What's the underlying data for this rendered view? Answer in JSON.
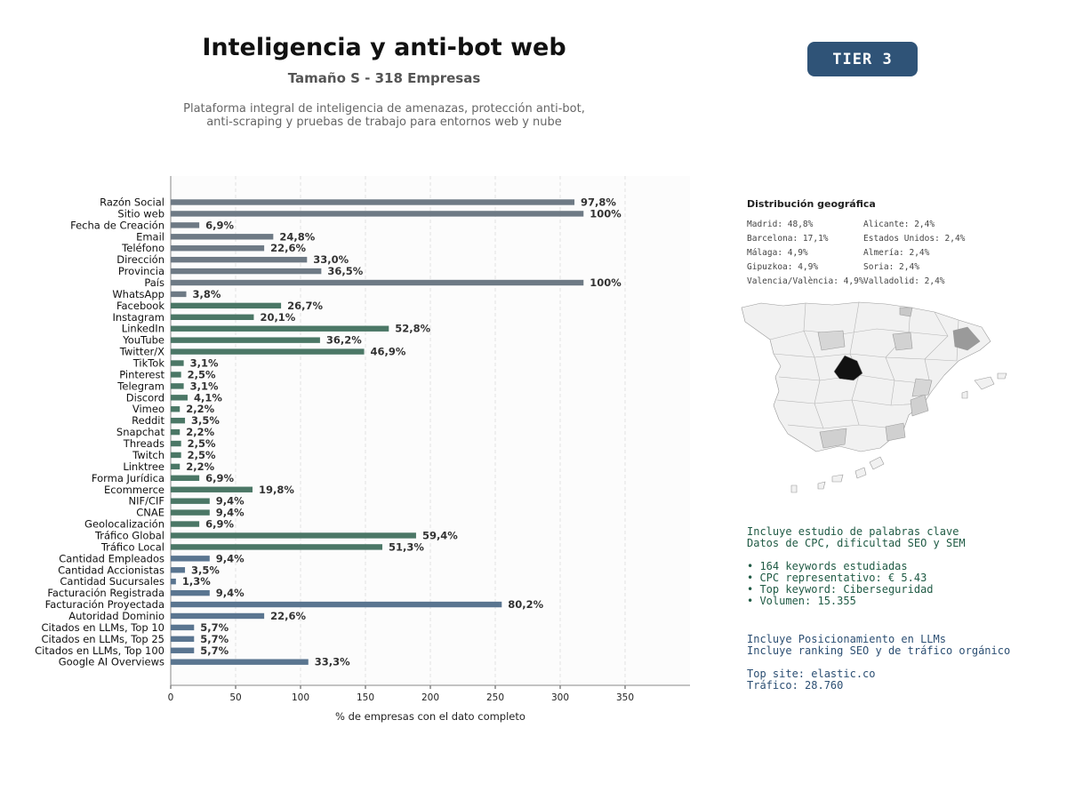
{
  "header": {
    "title": "Inteligencia y anti-bot web",
    "subtitle": "Tamaño S - 318 Empresas",
    "description_line1": "Plataforma integral de inteligencia de amenazas, protección anti-bot,",
    "description_line2": "anti-scraping y pruebas de trabajo para entornos web y nube",
    "tier_label": "TIER 3",
    "tier_color": "#2f5377"
  },
  "chart_data": {
    "type": "bar",
    "orientation": "horizontal",
    "xlabel": "% de empresas con el dato completo",
    "xlim": [
      0,
      400
    ],
    "xticks": [
      0,
      50,
      100,
      150,
      200,
      250,
      300,
      350
    ],
    "grid": "vertical dashed",
    "colors": {
      "group1": "#6e7a85",
      "group2": "#4b7766",
      "group3": "#5a7590"
    },
    "categories": [
      "Razón Social",
      "Sitio web",
      "Fecha de Creación",
      "Email",
      "Teléfono",
      "Dirección",
      "Provincia",
      "País",
      "WhatsApp",
      "Facebook",
      "Instagram",
      "LinkedIn",
      "YouTube",
      "Twitter/X",
      "TikTok",
      "Pinterest",
      "Telegram",
      "Discord",
      "Vimeo",
      "Reddit",
      "Snapchat",
      "Threads",
      "Twitch",
      "Linktree",
      "Forma Jurídica",
      "Ecommerce",
      "NIF/CIF",
      "CNAE",
      "Geolocalización",
      "Tráfico Global",
      "Tráfico Local",
      "Cantidad Empleados",
      "Cantidad Accionistas",
      "Cantidad Sucursales",
      "Facturación Registrada",
      "Facturación Proyectada",
      "Autoridad Dominio",
      "Citados en LLMs, Top 10",
      "Citados en LLMs, Top 25",
      "Citados en LLMs, Top 100",
      "Google AI Overviews"
    ],
    "values": [
      311,
      318,
      22,
      79,
      72,
      105,
      116,
      318,
      12,
      85,
      64,
      168,
      115,
      149,
      10,
      8,
      10,
      13,
      7,
      11,
      7,
      8,
      8,
      7,
      22,
      63,
      30,
      30,
      22,
      189,
      163,
      30,
      11,
      4,
      30,
      255,
      72,
      18,
      18,
      18,
      106
    ],
    "labels": [
      "97,8%",
      "100%",
      "6,9%",
      "24,8%",
      "22,6%",
      "33,0%",
      "36,5%",
      "100%",
      "3,8%",
      "26,7%",
      "20,1%",
      "52,8%",
      "36,2%",
      "46,9%",
      "3,1%",
      "2,5%",
      "3,1%",
      "4,1%",
      "2,2%",
      "3,5%",
      "2,2%",
      "2,5%",
      "2,5%",
      "2,2%",
      "6,9%",
      "19,8%",
      "9,4%",
      "9,4%",
      "6,9%",
      "59,4%",
      "51,3%",
      "9,4%",
      "3,5%",
      "1,3%",
      "9,4%",
      "80,2%",
      "22,6%",
      "5,7%",
      "5,7%",
      "5,7%",
      "33,3%"
    ],
    "groups": [
      "group1",
      "group1",
      "group1",
      "group1",
      "group1",
      "group1",
      "group1",
      "group1",
      "group1",
      "group2",
      "group2",
      "group2",
      "group2",
      "group2",
      "group2",
      "group2",
      "group2",
      "group2",
      "group2",
      "group2",
      "group2",
      "group2",
      "group2",
      "group2",
      "group2",
      "group2",
      "group2",
      "group2",
      "group2",
      "group2",
      "group2",
      "group3",
      "group3",
      "group3",
      "group3",
      "group3",
      "group3",
      "group3",
      "group3",
      "group3",
      "group3"
    ]
  },
  "geo": {
    "title": "Distribución geográfica",
    "left_column": [
      "Madrid: 48,8%",
      "Barcelona: 17,1%",
      "Málaga: 4,9%",
      "Gipuzkoa: 4,9%",
      "Valencia/València: 4,9%"
    ],
    "right_column": [
      "Alicante: 2,4%",
      "Estados Unidos: 2,4%",
      "Almería: 2,4%",
      "Soria: 2,4%",
      "Valladolid: 2,4%"
    ]
  },
  "keywords": {
    "line1": "Incluye estudio de palabras clave",
    "line2": "Datos de CPC, dificultad SEO y SEM",
    "bullets": [
      "• 164 keywords estudiadas",
      "• CPC representativo: € 5.43",
      "• Top keyword: Ciberseguridad",
      "• Volumen: 15.355"
    ]
  },
  "llm": {
    "line1": "Incluye Posicionamiento en LLMs",
    "line2": "Incluye ranking SEO y de tráfico orgánico",
    "top_site": "Top site: elastic.co",
    "traffic": "Tráfico: 28.760"
  }
}
